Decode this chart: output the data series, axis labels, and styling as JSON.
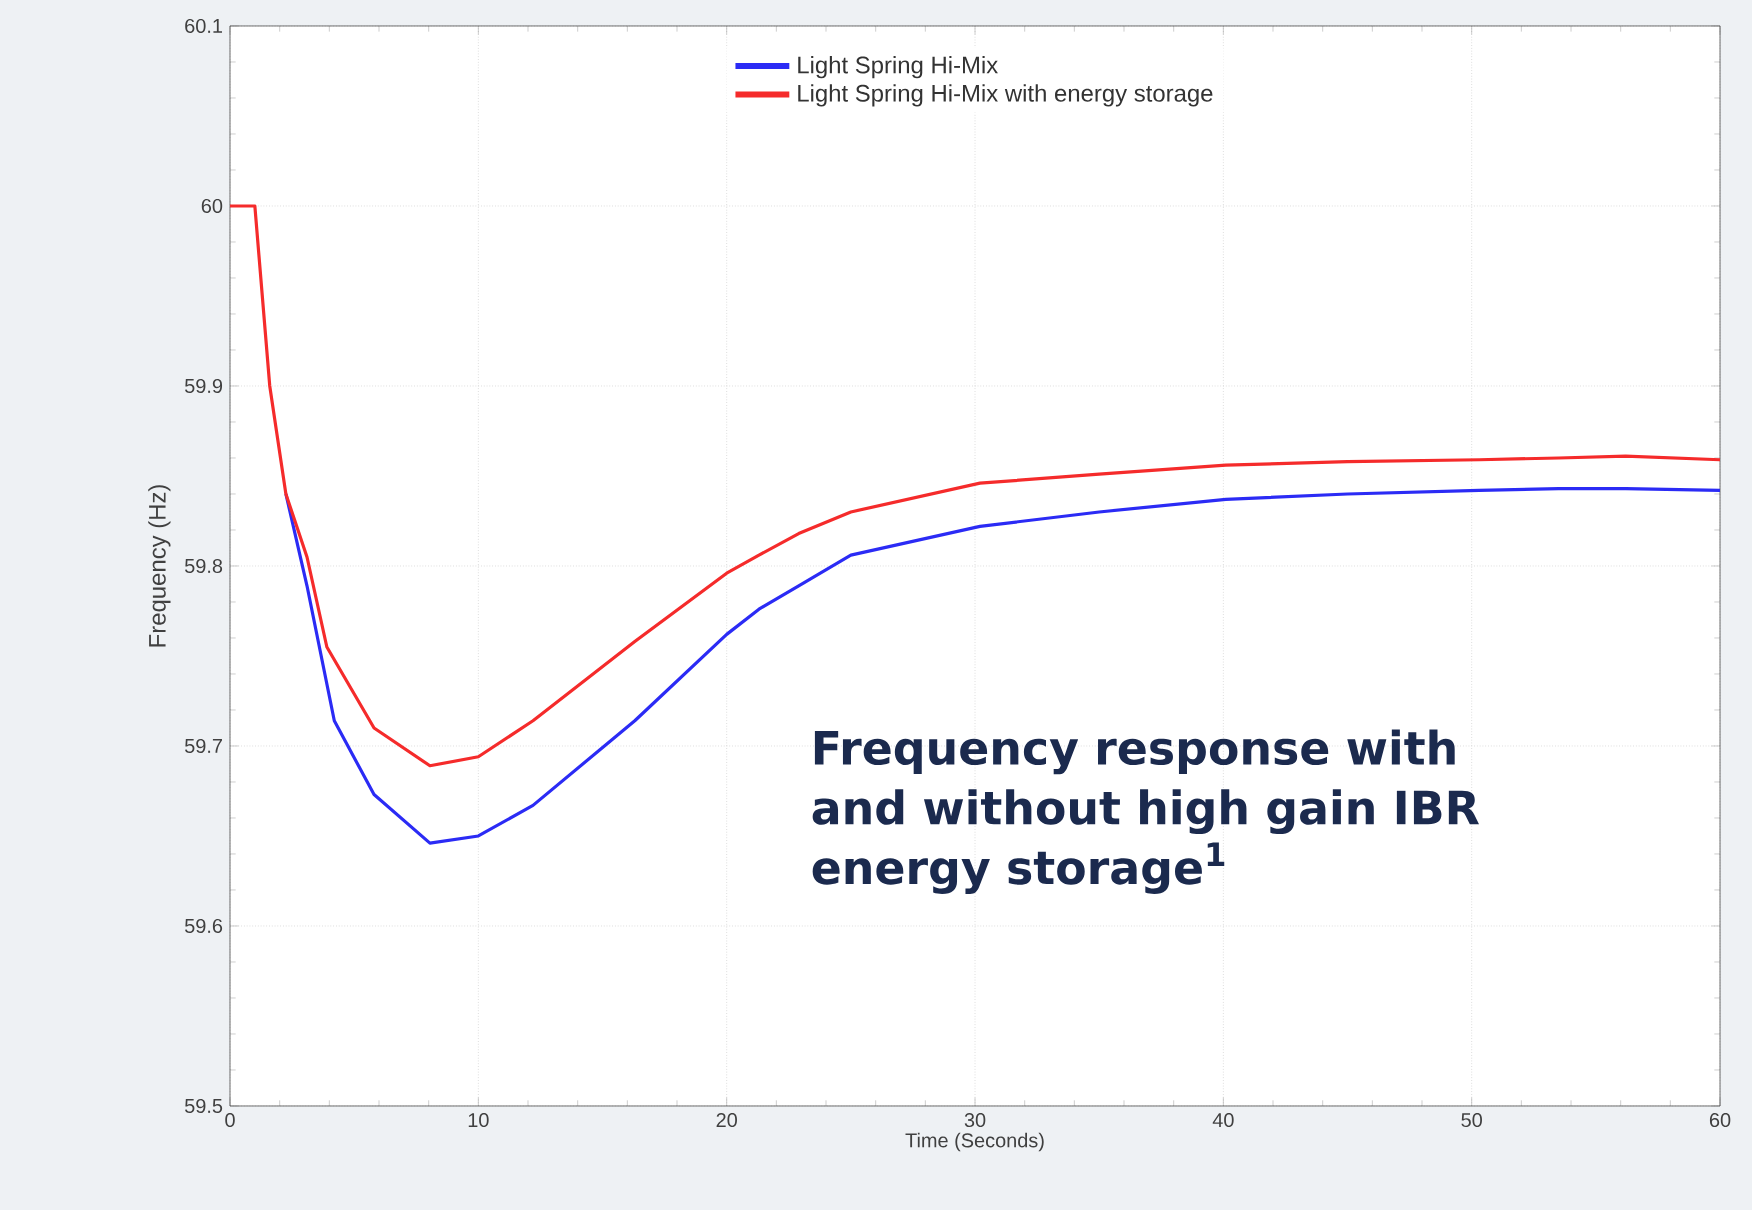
{
  "chart_data": {
    "type": "line",
    "xlabel": "Time (Seconds)",
    "ylabel": "Frequency (Hz)",
    "xlim": [
      0,
      60
    ],
    "ylim": [
      59.5,
      60.1
    ],
    "xticks": [
      0,
      10,
      20,
      30,
      40,
      50,
      60
    ],
    "yticks": [
      59.5,
      59.6,
      59.7,
      59.8,
      59.9,
      60,
      60.1
    ],
    "grid": true,
    "legend": "top",
    "marker": "none",
    "line_style": "solid",
    "annotations": [
      "Frequency response with and without high gain IBR energy storage$^{1}$"
    ],
    "series": [
      {
        "name": "Light Spring Hi-Mix",
        "color": "#2b2bf5",
        "x": [
          2.25,
          3.1,
          4.2,
          5.8,
          8.05,
          10,
          12.2,
          16.3,
          20,
          21.3,
          22.9,
          25,
          30.2,
          35,
          40.1,
          45,
          50.3,
          53.5,
          56.2,
          60
        ],
        "values": [
          59.84,
          59.789,
          59.714,
          59.673,
          59.646,
          59.65,
          59.667,
          59.714,
          59.762,
          59.776,
          59.789,
          59.806,
          59.822,
          59.83,
          59.837,
          59.84,
          59.842,
          59.843,
          59.843,
          59.842
        ]
      },
      {
        "name": "Light Spring Hi-Mix with energy storage",
        "color": "#f52b2b",
        "x": [
          0,
          1.0,
          1.6,
          2.25,
          3.1,
          3.9,
          5.8,
          8.05,
          10,
          12.2,
          16.3,
          20,
          21.3,
          22.9,
          25,
          30.2,
          35,
          40.1,
          45,
          50.3,
          53.5,
          56.2,
          60
        ],
        "values": [
          60,
          60,
          59.9,
          59.84,
          59.805,
          59.755,
          59.71,
          59.689,
          59.694,
          59.714,
          59.758,
          59.796,
          59.806,
          59.818,
          59.83,
          59.846,
          59.851,
          59.856,
          59.858,
          59.859,
          59.86,
          59.861,
          59.859
        ]
      }
    ]
  }
}
